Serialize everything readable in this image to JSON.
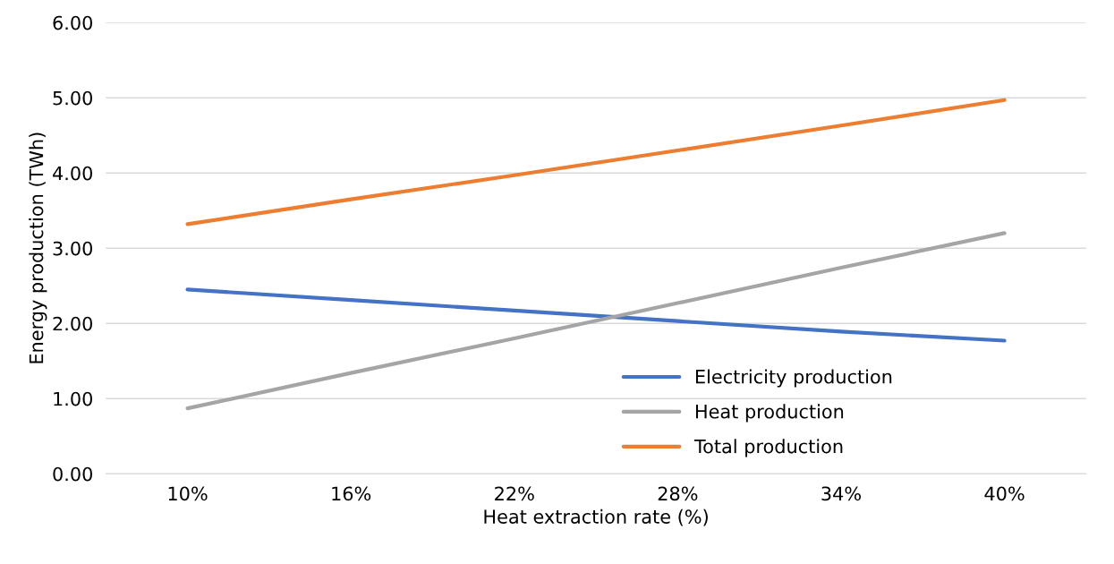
{
  "chart_data": {
    "type": "line",
    "xlabel": "Heat extraction rate (%)",
    "ylabel": "Energy production (TWh)",
    "categories": [
      "10%",
      "16%",
      "22%",
      "28%",
      "34%",
      "40%"
    ],
    "series": [
      {
        "name": "Electricity production",
        "color": "#4472c4",
        "values": [
          2.45,
          2.31,
          2.17,
          2.03,
          1.89,
          1.77
        ]
      },
      {
        "name": "Heat production",
        "color": "#a5a5a5",
        "values": [
          0.87,
          1.34,
          1.8,
          2.27,
          2.74,
          3.2
        ]
      },
      {
        "name": "Total production",
        "color": "#ed7d31",
        "values": [
          3.32,
          3.65,
          3.97,
          4.3,
          4.63,
          4.97
        ]
      }
    ],
    "ylim": [
      0,
      6
    ],
    "yticks": [
      {
        "value": 0,
        "label": "0.00"
      },
      {
        "value": 1,
        "label": "1.00"
      },
      {
        "value": 2,
        "label": "2.00"
      },
      {
        "value": 3,
        "label": "3.00"
      },
      {
        "value": 4,
        "label": "4.00"
      },
      {
        "value": 5,
        "label": "5.00"
      },
      {
        "value": 6,
        "label": "6.00"
      }
    ],
    "grid": "y",
    "legend": "bottom right",
    "marker": "none",
    "line_style": "solid"
  }
}
